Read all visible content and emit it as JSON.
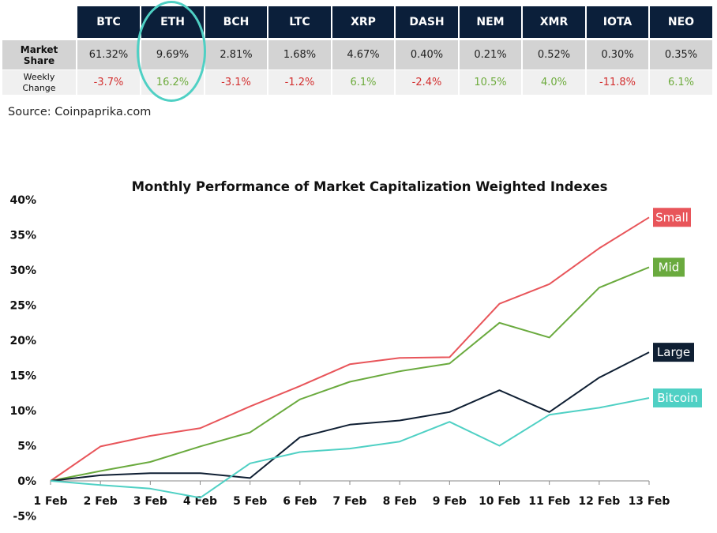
{
  "table": {
    "headers": [
      "BTC",
      "ETH",
      "BCH",
      "LTC",
      "XRP",
      "DASH",
      "NEM",
      "XMR",
      "IOTA",
      "NEO"
    ],
    "market_share_label": [
      "Market",
      "Share"
    ],
    "weekly_change_label": [
      "Weekly",
      "Change"
    ],
    "market_share": [
      "61.32%",
      "9.69%",
      "2.81%",
      "1.68%",
      "4.67%",
      "0.40%",
      "0.21%",
      "0.52%",
      "0.30%",
      "0.35%"
    ],
    "weekly_change": [
      "-3.7%",
      "16.2%",
      "-3.1%",
      "-1.2%",
      "6.1%",
      "-2.4%",
      "10.5%",
      "4.0%",
      "-11.8%",
      "6.1%"
    ],
    "highlighted_column": "ETH",
    "highlight_color": "#4fd0c4",
    "header_bg": "#0b1f3a",
    "positive_color": "#6dab3c",
    "negative_color": "#d32f2f"
  },
  "source": "Source: Coinpaprika.com",
  "chart_data": {
    "type": "line",
    "title": "Monthly Performance of Market Capitalization Weighted Indexes",
    "xlabel": "",
    "ylabel": "",
    "categories": [
      "1 Feb",
      "2 Feb",
      "3 Feb",
      "4 Feb",
      "5 Feb",
      "6 Feb",
      "7 Feb",
      "8 Feb",
      "9 Feb",
      "10 Feb",
      "11 Feb",
      "12 Feb",
      "13 Feb"
    ],
    "ylim": [
      -5,
      40
    ],
    "yticks": [
      -5,
      0,
      5,
      10,
      15,
      20,
      25,
      30,
      35,
      40
    ],
    "ytick_labels": [
      "-5%",
      "0%",
      "5%",
      "10%",
      "15%",
      "20%",
      "25%",
      "30%",
      "35%",
      "40%"
    ],
    "grid": false,
    "series": [
      {
        "name": "Small",
        "color": "#e8555a",
        "values": [
          0,
          4.9,
          6.4,
          7.5,
          10.6,
          13.5,
          16.6,
          17.5,
          17.6,
          25.2,
          28.0,
          33.1,
          37.5
        ]
      },
      {
        "name": "Mid",
        "color": "#6aaa3e",
        "values": [
          0,
          1.4,
          2.7,
          4.9,
          6.9,
          11.6,
          14.1,
          15.6,
          16.7,
          22.5,
          20.4,
          27.5,
          30.4
        ]
      },
      {
        "name": "Large",
        "color": "#0f1f33",
        "values": [
          0,
          0.8,
          1.1,
          1.1,
          0.4,
          6.2,
          8.0,
          8.6,
          9.8,
          12.9,
          9.8,
          14.7,
          18.3
        ]
      },
      {
        "name": "Bitcoin",
        "color": "#4fd0c4",
        "values": [
          0,
          -0.6,
          -1.1,
          -2.4,
          2.5,
          4.1,
          4.6,
          5.6,
          8.4,
          5.0,
          9.4,
          10.4,
          11.8
        ]
      }
    ]
  }
}
